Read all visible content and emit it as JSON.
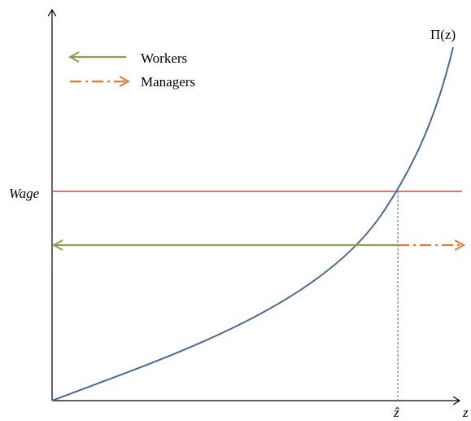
{
  "legend": {
    "workers_label": "Workers",
    "managers_label": "Managers"
  },
  "labels": {
    "wage": "Wage",
    "curve": "Π(z)",
    "z_hat": "ẑ",
    "x_axis": "z"
  },
  "colors": {
    "axis": "#000000",
    "curve": "#4a6a94",
    "wage_line": "#c0504d",
    "workers_arrow": "#8aa050",
    "managers_arrow": "#e07b39",
    "cutoff_line": "#4a6a94"
  },
  "icons": {
    "workers": "left-arrow-icon",
    "managers": "dash-dot-right-arrow-icon"
  }
}
